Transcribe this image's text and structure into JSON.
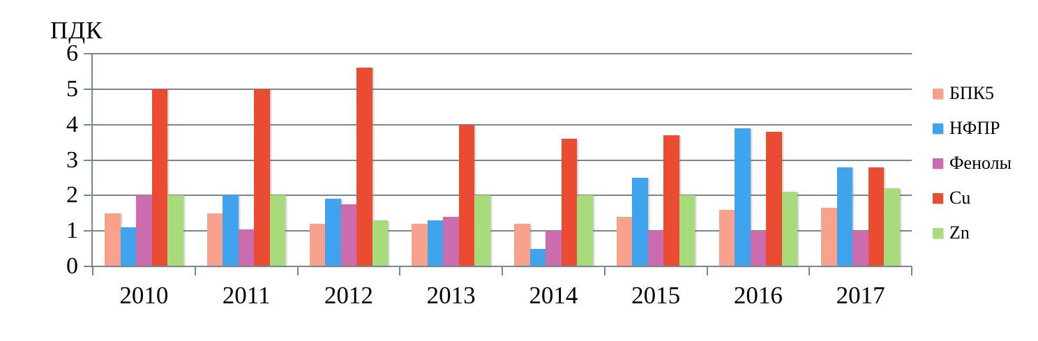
{
  "chart_data": {
    "type": "bar",
    "title": "",
    "ylabel": "ПДК",
    "xlabel": "",
    "ylim": [
      0,
      6
    ],
    "yticks": [
      0,
      1,
      2,
      3,
      4,
      5,
      6
    ],
    "grid": true,
    "legend_position": "right",
    "categories": [
      "2010",
      "2011",
      "2012",
      "2013",
      "2014",
      "2015",
      "2016",
      "2017"
    ],
    "series": [
      {
        "name": "БПК5",
        "color": "#F8A28D",
        "values": [
          1.5,
          1.5,
          1.2,
          1.2,
          1.2,
          1.4,
          1.6,
          1.65
        ]
      },
      {
        "name": "НФПР",
        "color": "#3FA3ED",
        "values": [
          1.1,
          2.0,
          1.9,
          1.3,
          0.5,
          2.5,
          3.9,
          2.8
        ]
      },
      {
        "name": "Фенолы",
        "color": "#CA6CAE",
        "values": [
          2.0,
          1.05,
          1.75,
          1.4,
          1.0,
          1.0,
          1.0,
          1.0
        ]
      },
      {
        "name": "Cu",
        "color": "#EA4B33",
        "values": [
          5.0,
          5.0,
          5.6,
          4.0,
          3.6,
          3.7,
          3.8,
          2.8
        ]
      },
      {
        "name": "Zn",
        "color": "#A7DB7B",
        "values": [
          2.0,
          2.0,
          1.3,
          2.0,
          2.0,
          2.0,
          2.1,
          2.2
        ]
      }
    ]
  },
  "colors": {
    "gridline": "#76898B",
    "axis": "#76898B",
    "text": "#000000",
    "background": "#FFFFFF"
  }
}
